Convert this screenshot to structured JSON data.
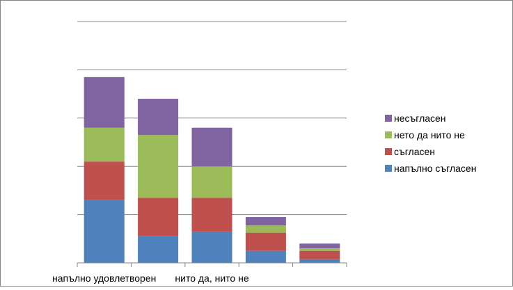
{
  "chart_data": {
    "type": "bar",
    "stacked": true,
    "title": "",
    "xlabel": "",
    "ylabel": "",
    "ylim": [
      0,
      100
    ],
    "grid": true,
    "legend_position": "right",
    "categories": [
      "напълно удовлетворен",
      "",
      "нито да, нито не",
      "",
      ""
    ],
    "series": [
      {
        "name": "напълно съгласен",
        "color": "#4F81BD",
        "values": [
          26,
          11,
          13,
          5,
          1.5
        ]
      },
      {
        "name": "съгласен",
        "color": "#C0504D",
        "values": [
          16,
          16,
          14,
          7.5,
          3.5
        ]
      },
      {
        "name": "нето да нито не",
        "color": "#9BBB59",
        "values": [
          14,
          26,
          13,
          3,
          1
        ]
      },
      {
        "name": "несъгласен",
        "color": "#8064A2",
        "values": [
          21,
          15,
          16,
          3.5,
          2
        ]
      }
    ]
  }
}
